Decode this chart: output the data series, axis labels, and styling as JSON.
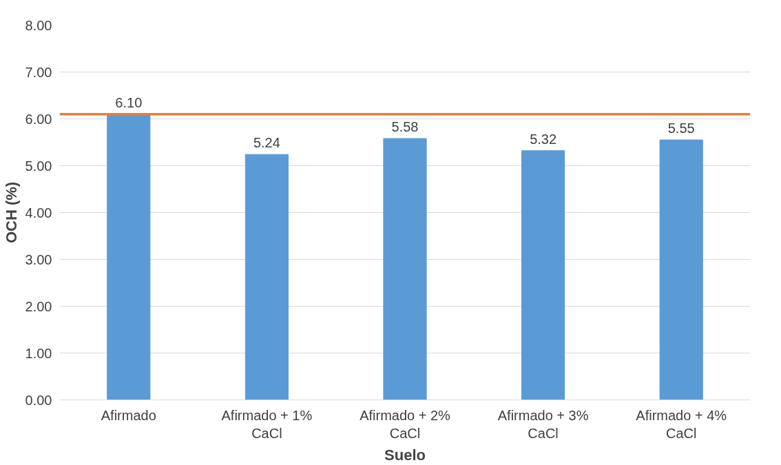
{
  "chart_data": {
    "type": "bar",
    "xlabel": "Suelo",
    "ylabel": "OCH (%)",
    "categories": [
      "Afirmado",
      "Afirmado + 1% CaCl",
      "Afirmado + 2% CaCl",
      "Afirmado + 3% CaCl",
      "Afirmado + 4% CaCl"
    ],
    "values": [
      6.1,
      5.24,
      5.58,
      5.32,
      5.55
    ],
    "value_labels": [
      "6.10",
      "5.24",
      "5.58",
      "5.32",
      "5.55"
    ],
    "color": "#5b9bd5",
    "ylim": [
      0,
      8
    ],
    "yticks": [
      {
        "value": 0,
        "label": "0.00"
      },
      {
        "value": 1,
        "label": "1.00"
      },
      {
        "value": 2,
        "label": "2.00"
      },
      {
        "value": 3,
        "label": "3.00"
      },
      {
        "value": 4,
        "label": "4.00"
      },
      {
        "value": 5,
        "label": "5.00"
      },
      {
        "value": 6,
        "label": "6.00"
      },
      {
        "value": 7,
        "label": "7.00"
      },
      {
        "value": 8,
        "label": "8.00"
      }
    ],
    "ref_lines": [
      {
        "axis": "y",
        "value": 6.1,
        "color": "#ed7d31"
      }
    ],
    "grid": "y"
  }
}
